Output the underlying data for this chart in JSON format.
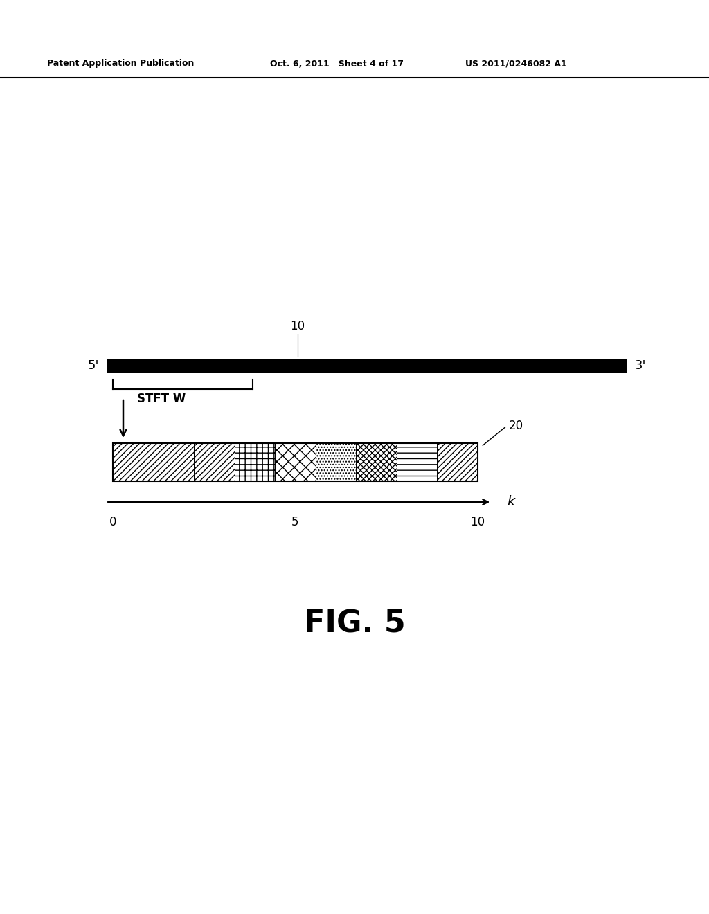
{
  "bg_color": "#ffffff",
  "header_left": "Patent Application Publication",
  "header_mid": "Oct. 6, 2011   Sheet 4 of 17",
  "header_right": "US 2011/0246082 A1",
  "fig_label": "FIG. 5",
  "dna_bar_label": "10",
  "dna_5prime": "5'",
  "dna_3prime": "3'",
  "stft_label": "STFT W",
  "spectrum_label": "20",
  "k_label": "k",
  "k_ticks": [
    "0",
    "5",
    "10"
  ],
  "header_fontsize": 9,
  "fig_label_fontsize": 32,
  "annotation_fontsize": 12
}
